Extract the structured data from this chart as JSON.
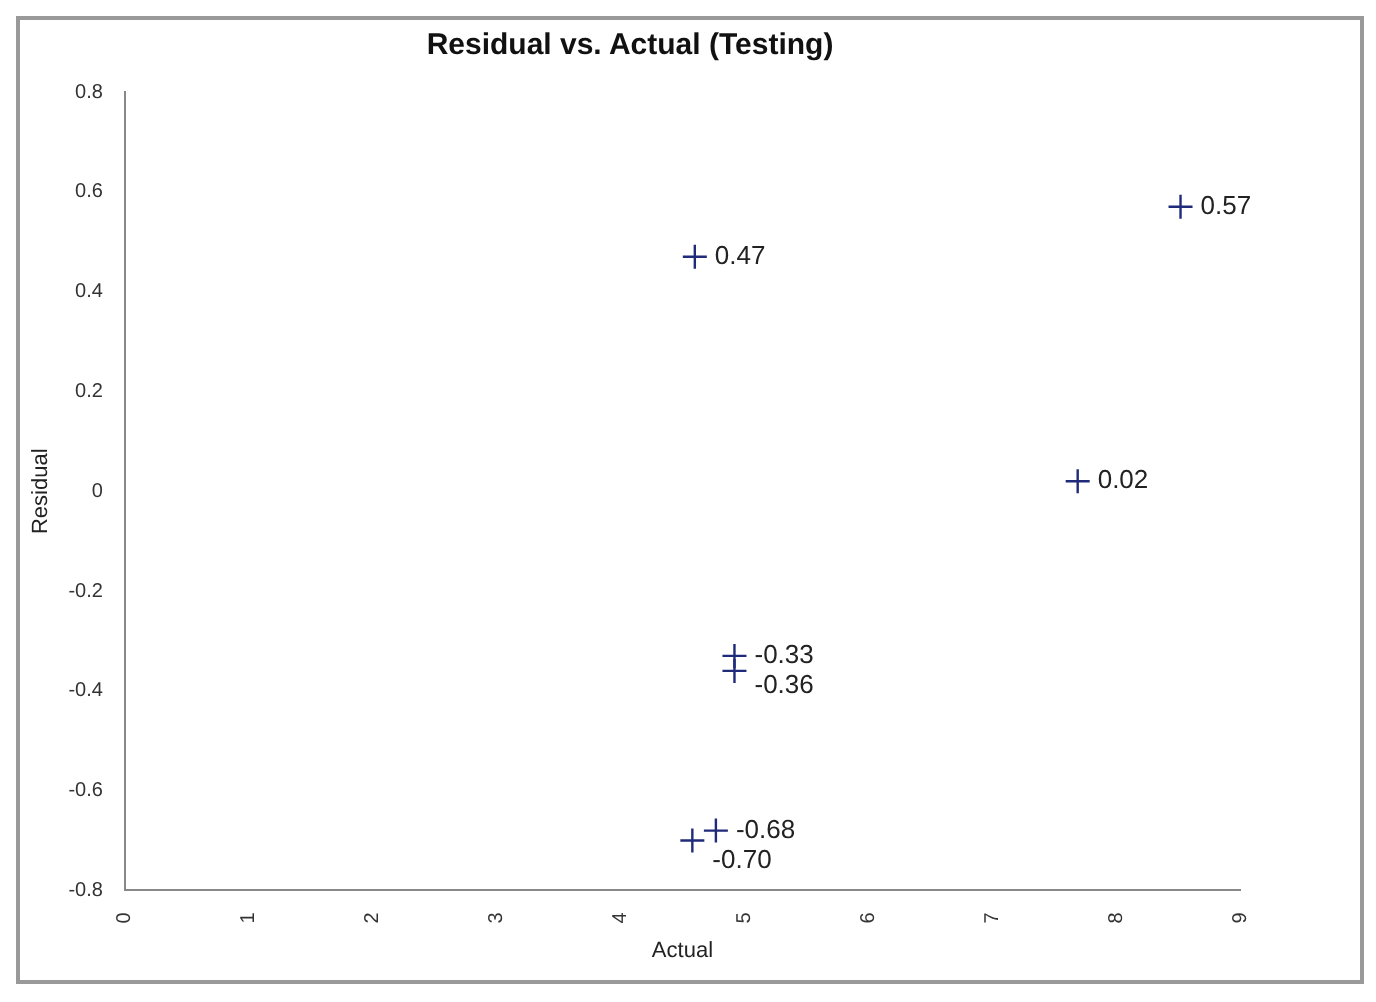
{
  "chart_data": {
    "type": "scatter",
    "title": "Residual vs. Actual (Testing)",
    "xlabel": "Actual",
    "ylabel": "Residual",
    "series": [
      {
        "color": "#1f2a7a",
        "x": [
          4.6,
          8.52,
          7.69,
          4.92,
          4.92,
          4.77,
          4.58
        ],
        "values": [
          0.47,
          0.57,
          0.02,
          -0.33,
          -0.36,
          -0.68,
          -0.7
        ],
        "value_labels": [
          "0.47",
          "0.57",
          "0.02",
          "-0.33",
          "-0.36",
          "-0.68",
          "-0.70"
        ]
      }
    ],
    "xlim": [
      0,
      9
    ],
    "xticks": [
      0,
      1,
      2,
      3,
      4,
      5,
      6,
      7,
      8,
      9
    ],
    "ylim": [
      -0.8,
      0.8
    ],
    "yticks": [
      -0.8,
      -0.6,
      -0.4,
      -0.2,
      0,
      0.2,
      0.4,
      0.6,
      0.8
    ],
    "grid": false,
    "legend": false,
    "marker": "cross"
  }
}
